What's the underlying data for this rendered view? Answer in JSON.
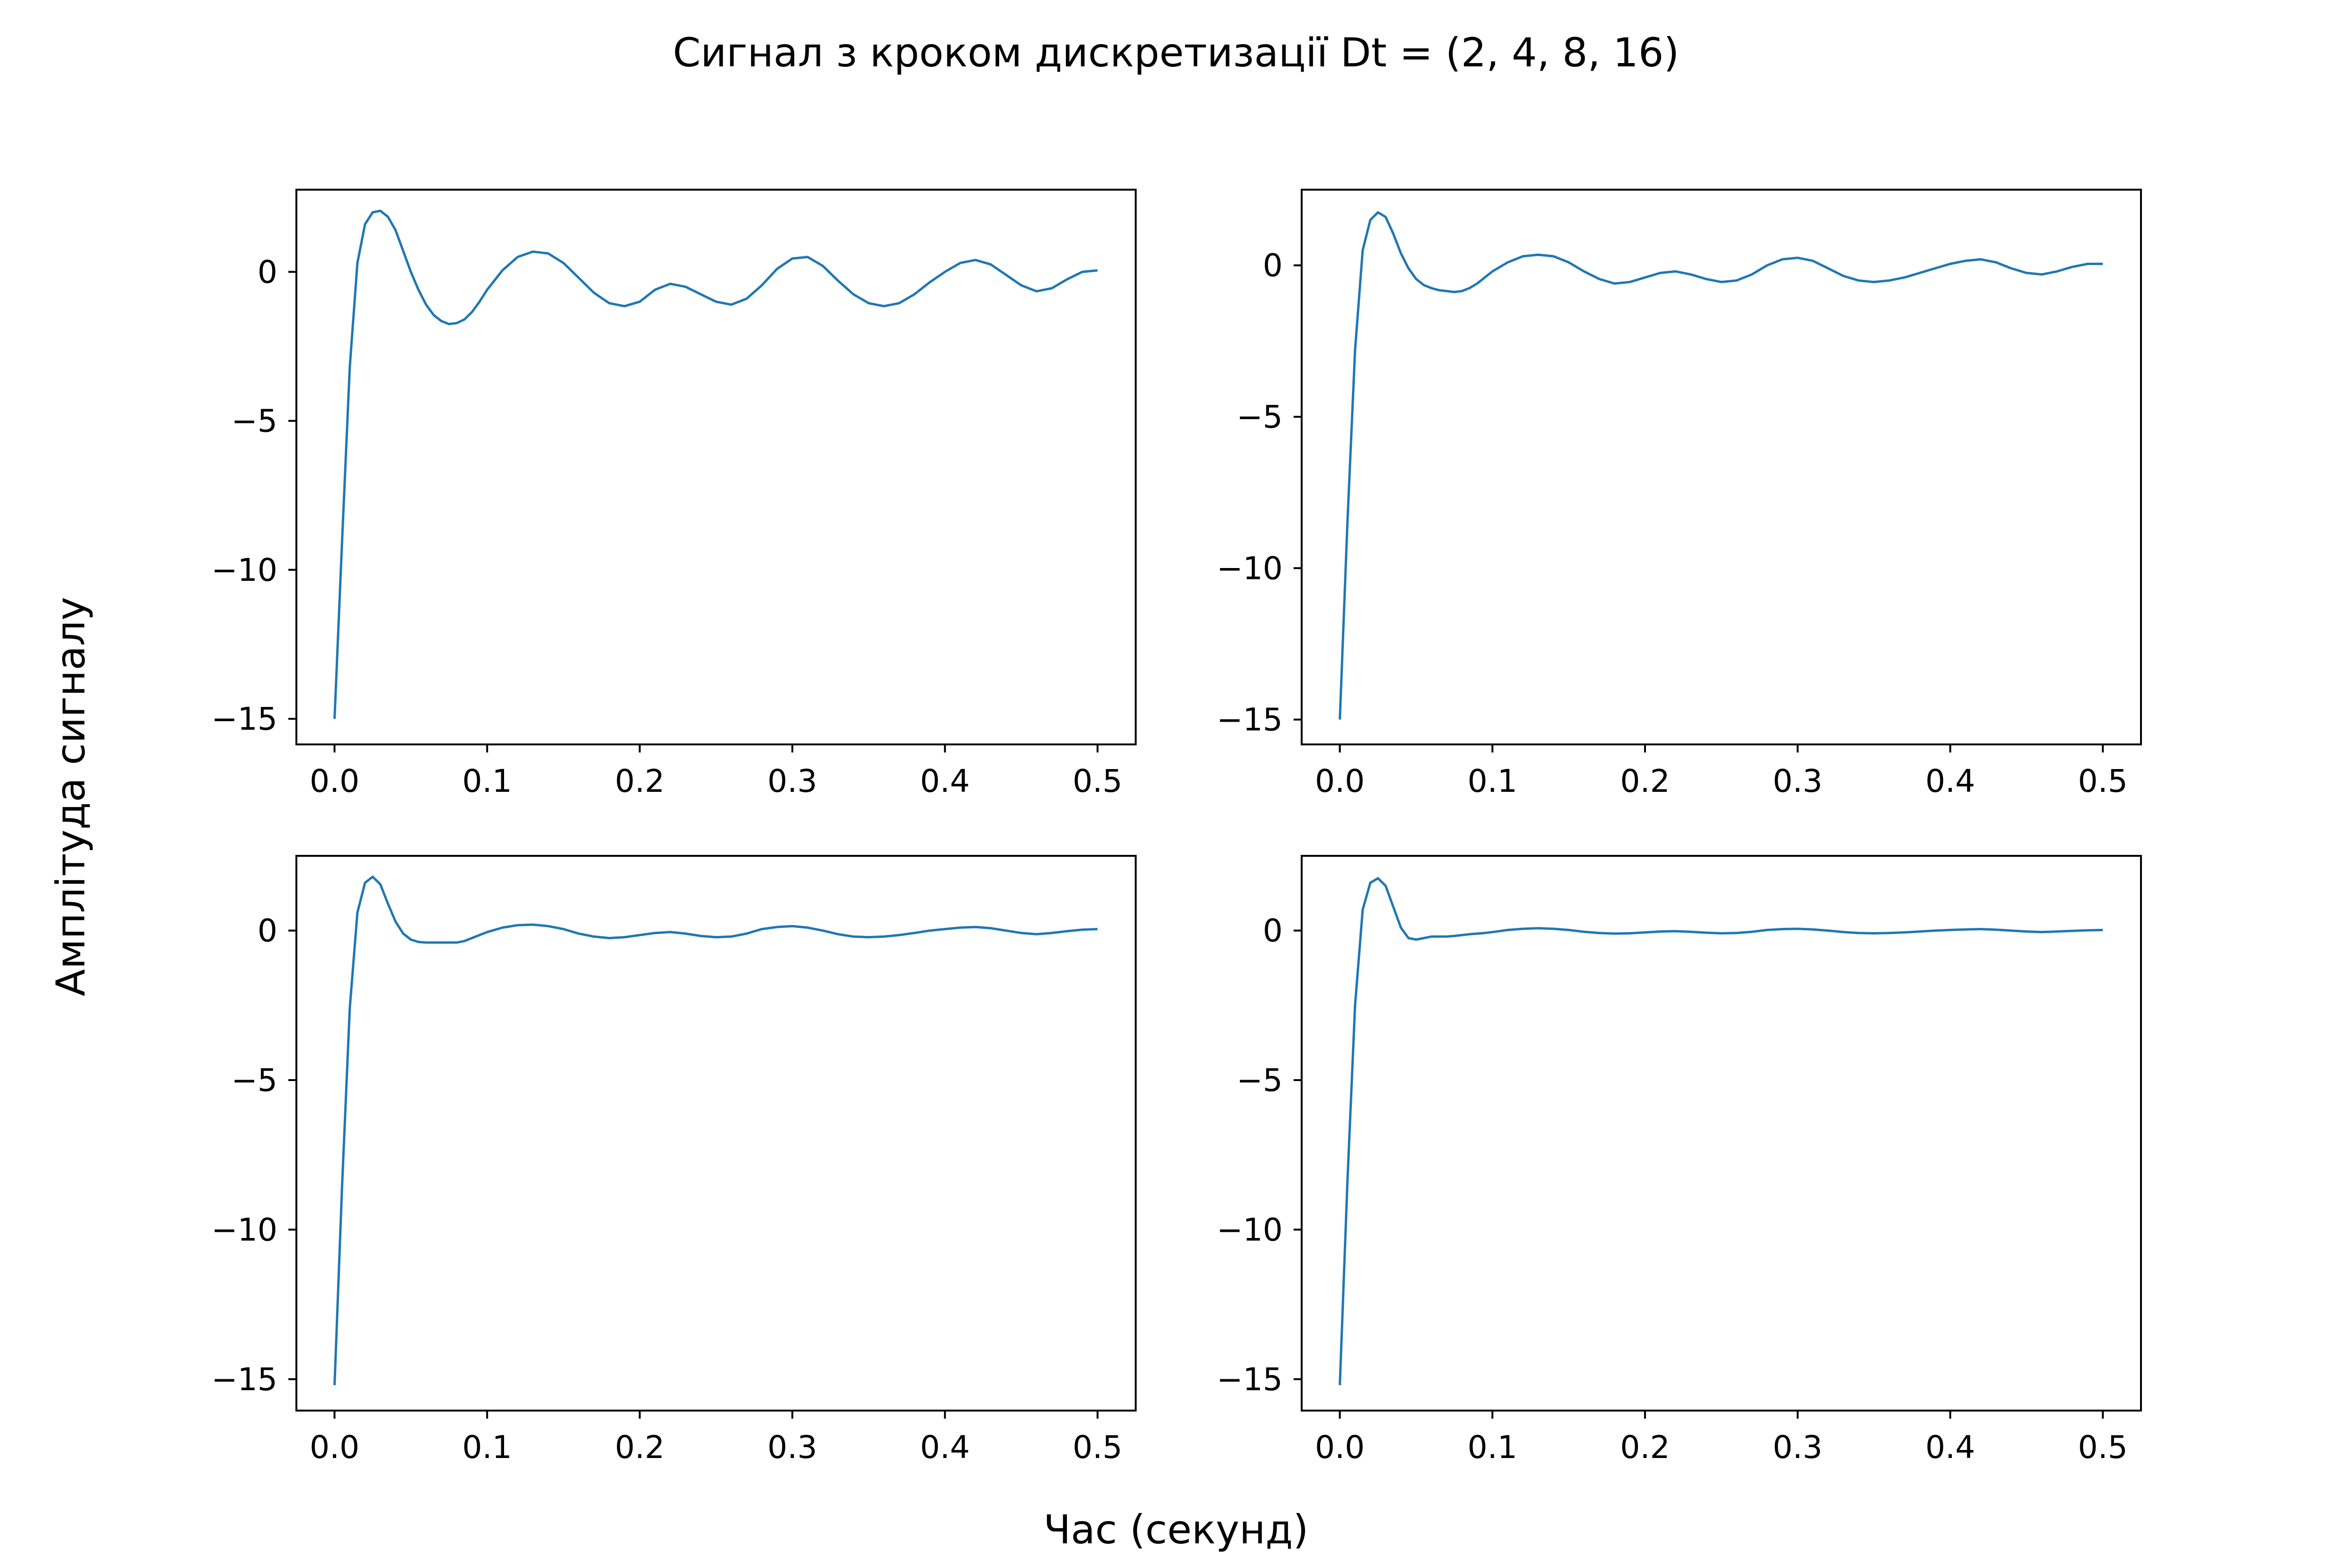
{
  "suptitle": "Сигнал з кроком дискретизації Dt = (2, 4, 8, 16)",
  "supxlabel": "Час (секунд)",
  "supylabel": "Амплітуда сигналу",
  "colors": {
    "line": "#1f77b4",
    "axes": "#000000",
    "background": "#ffffff"
  },
  "chart_data": [
    {
      "type": "line",
      "title": "",
      "xlabel": "",
      "ylabel": "",
      "xlim": [
        -0.025,
        0.525
      ],
      "ylim": [
        -15.86,
        2.76
      ],
      "xticks": [
        0.0,
        0.1,
        0.2,
        0.3,
        0.4,
        0.5
      ],
      "xtick_labels": [
        "0.0",
        "0.1",
        "0.2",
        "0.3",
        "0.4",
        "0.5"
      ],
      "yticks": [
        -15,
        -10,
        -5,
        0
      ],
      "ytick_labels": [
        "−15",
        "−10",
        "−5",
        "0"
      ],
      "grid": false,
      "series": [
        {
          "x": [
            0.0,
            0.005,
            0.01,
            0.015,
            0.02,
            0.025,
            0.03,
            0.035,
            0.04,
            0.045,
            0.05,
            0.055,
            0.06,
            0.065,
            0.07,
            0.075,
            0.08,
            0.085,
            0.09,
            0.095,
            0.1,
            0.11,
            0.12,
            0.13,
            0.14,
            0.15,
            0.16,
            0.17,
            0.18,
            0.19,
            0.2,
            0.21,
            0.22,
            0.23,
            0.24,
            0.25,
            0.26,
            0.27,
            0.28,
            0.29,
            0.3,
            0.31,
            0.32,
            0.33,
            0.34,
            0.35,
            0.36,
            0.37,
            0.38,
            0.39,
            0.4,
            0.41,
            0.42,
            0.43,
            0.44,
            0.45,
            0.46,
            0.47,
            0.48,
            0.49,
            0.5
          ],
          "y": [
            -15.0,
            -9.0,
            -3.2,
            0.3,
            1.6,
            2.0,
            2.05,
            1.85,
            1.4,
            0.7,
            0.0,
            -0.6,
            -1.1,
            -1.45,
            -1.65,
            -1.75,
            -1.72,
            -1.6,
            -1.35,
            -1.0,
            -0.6,
            0.05,
            0.5,
            0.68,
            0.62,
            0.3,
            -0.2,
            -0.7,
            -1.05,
            -1.15,
            -1.0,
            -0.6,
            -0.4,
            -0.5,
            -0.75,
            -1.0,
            -1.1,
            -0.9,
            -0.45,
            0.1,
            0.45,
            0.5,
            0.2,
            -0.3,
            -0.75,
            -1.05,
            -1.15,
            -1.05,
            -0.75,
            -0.35,
            0.0,
            0.3,
            0.4,
            0.25,
            -0.1,
            -0.45,
            -0.65,
            -0.55,
            -0.25,
            0.0,
            0.05
          ]
        }
      ]
    },
    {
      "type": "line",
      "title": "",
      "xlabel": "",
      "ylabel": "",
      "xlim": [
        -0.025,
        0.525
      ],
      "ylim": [
        -15.82,
        2.5
      ],
      "xticks": [
        0.0,
        0.1,
        0.2,
        0.3,
        0.4,
        0.5
      ],
      "xtick_labels": [
        "0.0",
        "0.1",
        "0.2",
        "0.3",
        "0.4",
        "0.5"
      ],
      "yticks": [
        -15,
        -10,
        -5,
        0
      ],
      "ytick_labels": [
        "−15",
        "−10",
        "−5",
        "0"
      ],
      "grid": false,
      "series": [
        {
          "x": [
            0.0,
            0.005,
            0.01,
            0.015,
            0.02,
            0.025,
            0.03,
            0.035,
            0.04,
            0.045,
            0.05,
            0.055,
            0.06,
            0.065,
            0.07,
            0.075,
            0.08,
            0.085,
            0.09,
            0.095,
            0.1,
            0.11,
            0.12,
            0.13,
            0.14,
            0.15,
            0.16,
            0.17,
            0.18,
            0.19,
            0.2,
            0.21,
            0.22,
            0.23,
            0.24,
            0.25,
            0.26,
            0.27,
            0.28,
            0.29,
            0.3,
            0.31,
            0.32,
            0.33,
            0.34,
            0.35,
            0.36,
            0.37,
            0.38,
            0.39,
            0.4,
            0.41,
            0.42,
            0.43,
            0.44,
            0.45,
            0.46,
            0.47,
            0.48,
            0.49,
            0.5
          ],
          "y": [
            -15.0,
            -8.5,
            -2.8,
            0.5,
            1.5,
            1.75,
            1.6,
            1.05,
            0.4,
            -0.1,
            -0.45,
            -0.65,
            -0.75,
            -0.82,
            -0.85,
            -0.88,
            -0.85,
            -0.75,
            -0.6,
            -0.4,
            -0.2,
            0.1,
            0.3,
            0.35,
            0.3,
            0.1,
            -0.2,
            -0.45,
            -0.6,
            -0.55,
            -0.4,
            -0.25,
            -0.2,
            -0.3,
            -0.45,
            -0.55,
            -0.5,
            -0.3,
            0.0,
            0.2,
            0.25,
            0.15,
            -0.1,
            -0.35,
            -0.5,
            -0.55,
            -0.5,
            -0.4,
            -0.25,
            -0.1,
            0.05,
            0.15,
            0.2,
            0.1,
            -0.1,
            -0.25,
            -0.3,
            -0.2,
            -0.05,
            0.05,
            0.05
          ]
        }
      ]
    },
    {
      "type": "line",
      "title": "",
      "xlabel": "",
      "ylabel": "",
      "xlim": [
        -0.025,
        0.525
      ],
      "ylim": [
        -16.05,
        2.5
      ],
      "xticks": [
        0.0,
        0.1,
        0.2,
        0.3,
        0.4,
        0.5
      ],
      "xtick_labels": [
        "0.0",
        "0.1",
        "0.2",
        "0.3",
        "0.4",
        "0.5"
      ],
      "yticks": [
        -15,
        -10,
        -5,
        0
      ],
      "ytick_labels": [
        "−15",
        "−10",
        "−5",
        "0"
      ],
      "grid": false,
      "series": [
        {
          "x": [
            0.0,
            0.005,
            0.01,
            0.015,
            0.02,
            0.025,
            0.03,
            0.035,
            0.04,
            0.045,
            0.05,
            0.055,
            0.06,
            0.065,
            0.07,
            0.075,
            0.08,
            0.085,
            0.09,
            0.095,
            0.1,
            0.11,
            0.12,
            0.13,
            0.14,
            0.15,
            0.16,
            0.17,
            0.18,
            0.19,
            0.2,
            0.21,
            0.22,
            0.23,
            0.24,
            0.25,
            0.26,
            0.27,
            0.28,
            0.29,
            0.3,
            0.31,
            0.32,
            0.33,
            0.34,
            0.35,
            0.36,
            0.37,
            0.38,
            0.39,
            0.4,
            0.41,
            0.42,
            0.43,
            0.44,
            0.45,
            0.46,
            0.47,
            0.48,
            0.49,
            0.5
          ],
          "y": [
            -15.2,
            -8.5,
            -2.6,
            0.6,
            1.6,
            1.8,
            1.55,
            0.9,
            0.3,
            -0.1,
            -0.3,
            -0.38,
            -0.4,
            -0.4,
            -0.4,
            -0.4,
            -0.4,
            -0.35,
            -0.25,
            -0.15,
            -0.05,
            0.1,
            0.18,
            0.2,
            0.15,
            0.05,
            -0.1,
            -0.2,
            -0.25,
            -0.22,
            -0.15,
            -0.08,
            -0.05,
            -0.1,
            -0.18,
            -0.22,
            -0.2,
            -0.1,
            0.05,
            0.12,
            0.15,
            0.1,
            0.0,
            -0.12,
            -0.2,
            -0.22,
            -0.2,
            -0.15,
            -0.08,
            0.0,
            0.05,
            0.1,
            0.12,
            0.08,
            0.0,
            -0.08,
            -0.12,
            -0.08,
            -0.02,
            0.03,
            0.05
          ]
        }
      ]
    },
    {
      "type": "line",
      "title": "",
      "xlabel": "",
      "ylabel": "",
      "xlim": [
        -0.025,
        0.525
      ],
      "ylim": [
        -16.05,
        2.5
      ],
      "xticks": [
        0.0,
        0.1,
        0.2,
        0.3,
        0.4,
        0.5
      ],
      "xtick_labels": [
        "0.0",
        "0.1",
        "0.2",
        "0.3",
        "0.4",
        "0.5"
      ],
      "yticks": [
        -15,
        -10,
        -5,
        0
      ],
      "ytick_labels": [
        "−15",
        "−10",
        "−5",
        "0"
      ],
      "grid": false,
      "series": [
        {
          "x": [
            0.0,
            0.005,
            0.01,
            0.015,
            0.02,
            0.025,
            0.03,
            0.035,
            0.04,
            0.045,
            0.05,
            0.055,
            0.06,
            0.065,
            0.07,
            0.075,
            0.08,
            0.085,
            0.09,
            0.095,
            0.1,
            0.11,
            0.12,
            0.13,
            0.14,
            0.15,
            0.16,
            0.17,
            0.18,
            0.19,
            0.2,
            0.21,
            0.22,
            0.23,
            0.24,
            0.25,
            0.26,
            0.27,
            0.28,
            0.29,
            0.3,
            0.31,
            0.32,
            0.33,
            0.34,
            0.35,
            0.36,
            0.37,
            0.38,
            0.39,
            0.4,
            0.41,
            0.42,
            0.43,
            0.44,
            0.45,
            0.46,
            0.47,
            0.48,
            0.49,
            0.5
          ],
          "y": [
            -15.2,
            -8.4,
            -2.5,
            0.7,
            1.6,
            1.75,
            1.5,
            0.8,
            0.1,
            -0.25,
            -0.3,
            -0.25,
            -0.2,
            -0.2,
            -0.2,
            -0.18,
            -0.15,
            -0.12,
            -0.1,
            -0.08,
            -0.05,
            0.02,
            0.06,
            0.08,
            0.06,
            0.02,
            -0.04,
            -0.08,
            -0.1,
            -0.09,
            -0.06,
            -0.03,
            -0.02,
            -0.04,
            -0.07,
            -0.09,
            -0.08,
            -0.04,
            0.02,
            0.05,
            0.06,
            0.04,
            0.0,
            -0.05,
            -0.08,
            -0.09,
            -0.08,
            -0.06,
            -0.03,
            0.0,
            0.02,
            0.04,
            0.05,
            0.03,
            0.0,
            -0.03,
            -0.05,
            -0.03,
            -0.01,
            0.01,
            0.02
          ]
        }
      ]
    }
  ]
}
